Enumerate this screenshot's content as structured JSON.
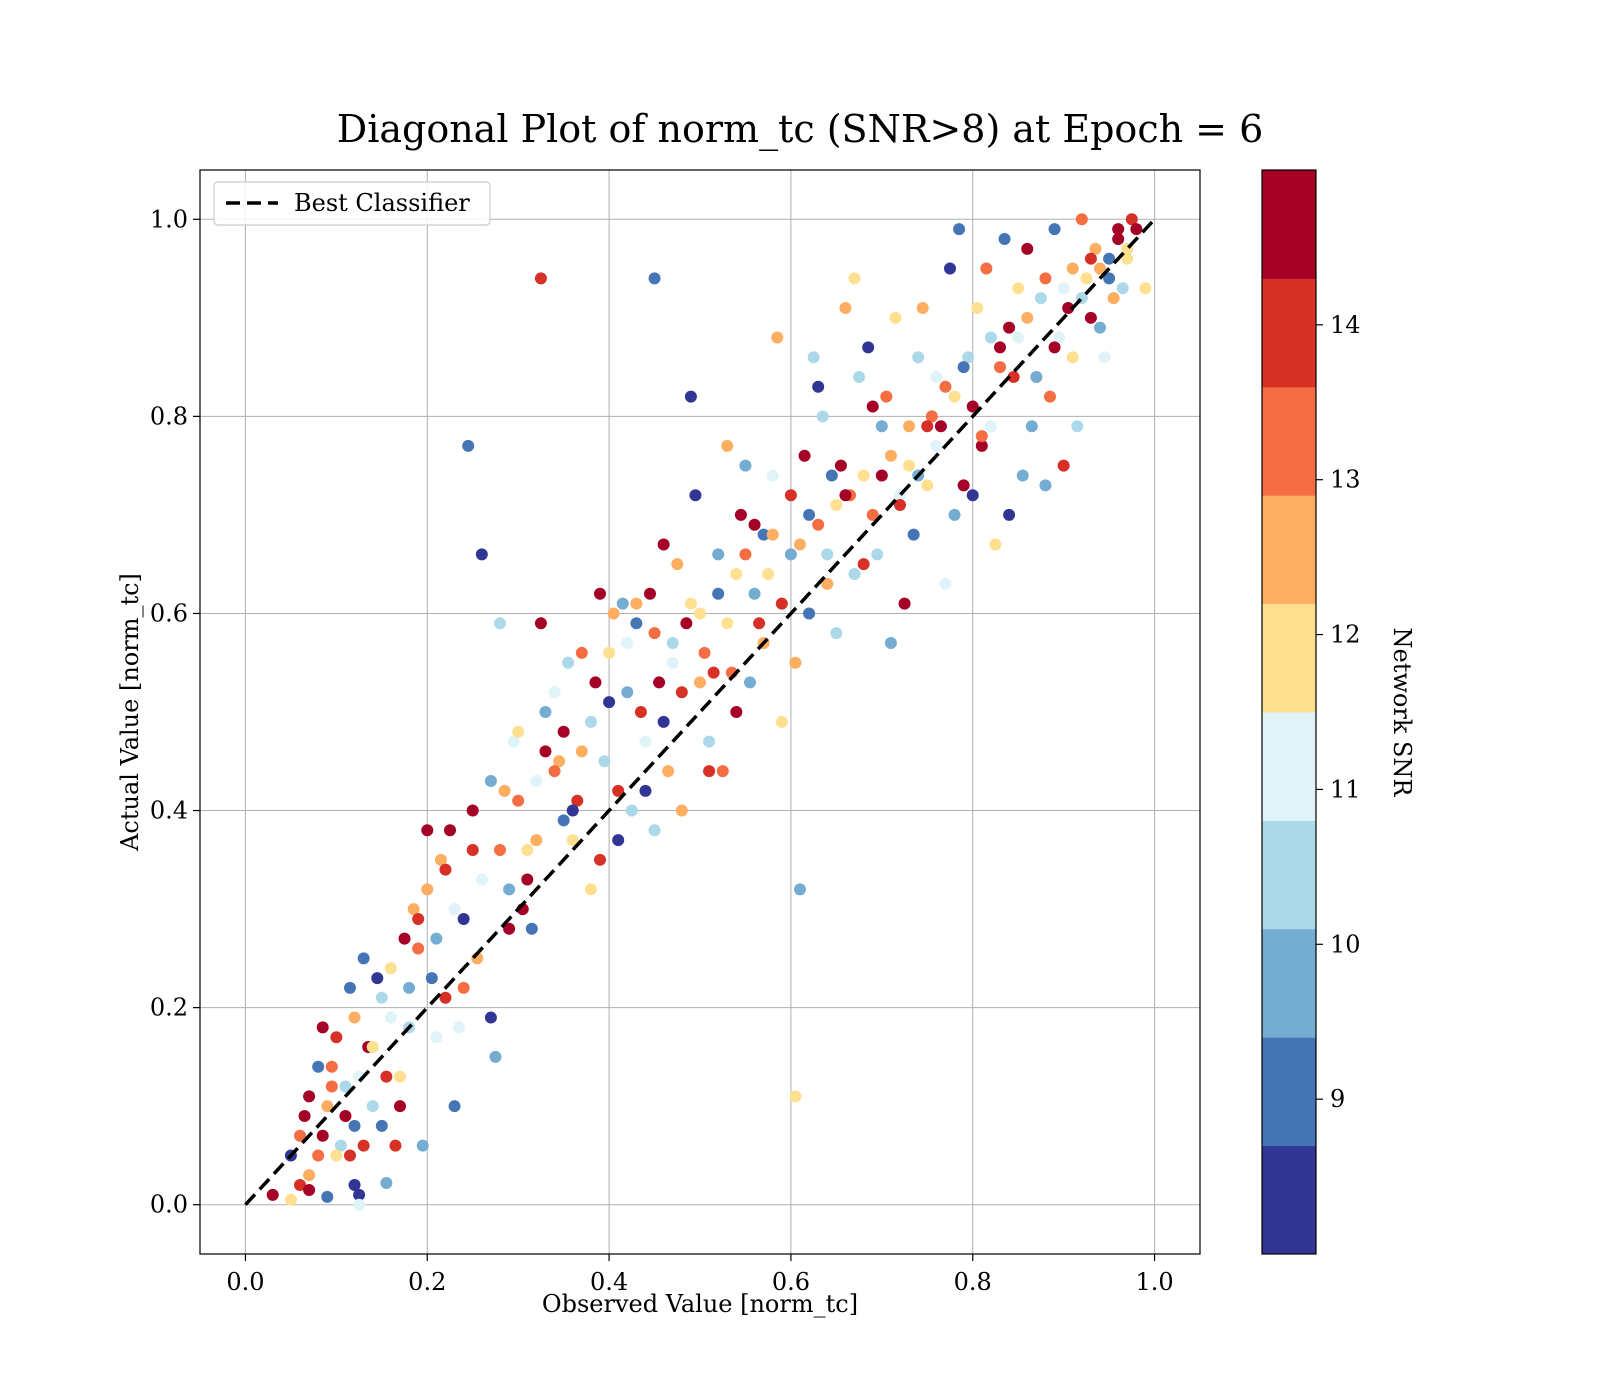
{
  "chart_data": {
    "type": "scatter",
    "title": "Diagonal Plot of norm_tc (SNR>8) at Epoch = 6",
    "xlabel": "Observed Value [norm_tc]",
    "ylabel": "Actual Value [norm_tc]",
    "xlim": [
      -0.05,
      1.05
    ],
    "ylim": [
      -0.05,
      1.05
    ],
    "xticks": [
      "0.0",
      "0.2",
      "0.4",
      "0.6",
      "0.8",
      "1.0"
    ],
    "yticks": [
      "0.0",
      "0.2",
      "0.4",
      "0.6",
      "0.8",
      "1.0"
    ],
    "grid": true,
    "legend": {
      "location": "top-left",
      "entries": [
        "Best Classifier"
      ]
    },
    "reference_line": {
      "name": "Best Classifier",
      "x": [
        0,
        1
      ],
      "y": [
        0,
        1
      ],
      "style": "dashed",
      "color": "#000000"
    },
    "colorbar": {
      "label": "Network SNR",
      "range": [
        8,
        15
      ],
      "ticks": [
        "9",
        "10",
        "11",
        "12",
        "13",
        "14"
      ],
      "colors": [
        "#313695",
        "#4575b4",
        "#74add1",
        "#abd9e9",
        "#e0f3f8",
        "#fee090",
        "#fdae61",
        "#f46d43",
        "#d73027",
        "#a50026"
      ]
    },
    "points": [
      [
        0.03,
        0.01,
        14.6
      ],
      [
        0.05,
        0.005,
        12.2
      ],
      [
        0.06,
        0.02,
        14.1
      ],
      [
        0.07,
        0.015,
        14.5
      ],
      [
        0.09,
        0.008,
        9.2
      ],
      [
        0.12,
        0.02,
        8.4
      ],
      [
        0.125,
        0.01,
        8.5
      ],
      [
        0.125,
        0.0,
        11.2
      ],
      [
        0.155,
        0.022,
        9.8
      ],
      [
        0.05,
        0.05,
        8.6
      ],
      [
        0.06,
        0.07,
        13.1
      ],
      [
        0.065,
        0.09,
        14.4
      ],
      [
        0.07,
        0.11,
        14.6
      ],
      [
        0.08,
        0.05,
        13.5
      ],
      [
        0.085,
        0.18,
        14.7
      ],
      [
        0.09,
        0.1,
        12.8
      ],
      [
        0.095,
        0.12,
        13.3
      ],
      [
        0.1,
        0.17,
        14.2
      ],
      [
        0.105,
        0.06,
        10.6
      ],
      [
        0.11,
        0.09,
        14.3
      ],
      [
        0.115,
        0.22,
        9.1
      ],
      [
        0.12,
        0.19,
        12.4
      ],
      [
        0.125,
        0.13,
        11.0
      ],
      [
        0.13,
        0.25,
        9.3
      ],
      [
        0.135,
        0.16,
        14.6
      ],
      [
        0.14,
        0.1,
        10.5
      ],
      [
        0.145,
        0.23,
        8.7
      ],
      [
        0.15,
        0.21,
        10.2
      ],
      [
        0.155,
        0.13,
        13.9
      ],
      [
        0.16,
        0.24,
        12.1
      ],
      [
        0.165,
        0.06,
        14.2
      ],
      [
        0.17,
        0.13,
        11.6
      ],
      [
        0.175,
        0.27,
        14.5
      ],
      [
        0.18,
        0.22,
        9.8
      ],
      [
        0.185,
        0.3,
        12.6
      ],
      [
        0.19,
        0.29,
        13.9
      ],
      [
        0.195,
        0.06,
        9.5
      ],
      [
        0.2,
        0.38,
        14.4
      ],
      [
        0.205,
        0.23,
        8.9
      ],
      [
        0.21,
        0.17,
        11.3
      ],
      [
        0.215,
        0.35,
        12.7
      ],
      [
        0.22,
        0.21,
        13.8
      ],
      [
        0.225,
        0.38,
        14.6
      ],
      [
        0.23,
        0.1,
        9.2
      ],
      [
        0.235,
        0.18,
        10.8
      ],
      [
        0.24,
        0.29,
        8.6
      ],
      [
        0.245,
        0.77,
        9.3
      ],
      [
        0.25,
        0.36,
        13.9
      ],
      [
        0.255,
        0.25,
        12.3
      ],
      [
        0.26,
        0.66,
        8.3
      ],
      [
        0.27,
        0.19,
        8.4
      ],
      [
        0.275,
        0.15,
        9.7
      ],
      [
        0.28,
        0.59,
        10.7
      ],
      [
        0.285,
        0.42,
        12.4
      ],
      [
        0.29,
        0.28,
        14.5
      ],
      [
        0.295,
        0.47,
        11.4
      ],
      [
        0.3,
        0.41,
        13.2
      ],
      [
        0.305,
        0.3,
        14.7
      ],
      [
        0.31,
        0.36,
        12.1
      ],
      [
        0.315,
        0.28,
        9.1
      ],
      [
        0.32,
        0.43,
        10.9
      ],
      [
        0.325,
        0.94,
        14.2
      ],
      [
        0.325,
        0.59,
        14.7
      ],
      [
        0.33,
        0.46,
        14.6
      ],
      [
        0.34,
        0.52,
        11.2
      ],
      [
        0.345,
        0.45,
        12.6
      ],
      [
        0.35,
        0.39,
        9.0
      ],
      [
        0.355,
        0.55,
        10.3
      ],
      [
        0.36,
        0.37,
        11.9
      ],
      [
        0.365,
        0.41,
        14.2
      ],
      [
        0.37,
        0.56,
        13.5
      ],
      [
        0.38,
        0.32,
        11.7
      ],
      [
        0.385,
        0.53,
        14.3
      ],
      [
        0.39,
        0.62,
        14.8
      ],
      [
        0.395,
        0.45,
        10.6
      ],
      [
        0.4,
        0.51,
        8.5
      ],
      [
        0.405,
        0.6,
        12.6
      ],
      [
        0.41,
        0.37,
        8.6
      ],
      [
        0.415,
        0.61,
        9.6
      ],
      [
        0.42,
        0.57,
        11.1
      ],
      [
        0.425,
        0.4,
        10.4
      ],
      [
        0.43,
        0.59,
        9.2
      ],
      [
        0.435,
        0.5,
        14.0
      ],
      [
        0.44,
        0.42,
        8.3
      ],
      [
        0.445,
        0.62,
        14.3
      ],
      [
        0.45,
        0.94,
        9.3
      ],
      [
        0.45,
        0.38,
        10.2
      ],
      [
        0.455,
        0.53,
        14.6
      ],
      [
        0.46,
        0.67,
        14.7
      ],
      [
        0.465,
        0.44,
        12.8
      ],
      [
        0.47,
        0.55,
        11.3
      ],
      [
        0.475,
        0.65,
        12.5
      ],
      [
        0.48,
        0.4,
        12.7
      ],
      [
        0.485,
        0.59,
        14.7
      ],
      [
        0.49,
        0.82,
        8.4
      ],
      [
        0.495,
        0.72,
        8.6
      ],
      [
        0.5,
        0.6,
        12.1
      ],
      [
        0.505,
        0.56,
        12.9
      ],
      [
        0.51,
        0.47,
        10.7
      ],
      [
        0.515,
        0.54,
        14.2
      ],
      [
        0.52,
        0.66,
        9.4
      ],
      [
        0.525,
        0.44,
        13.1
      ],
      [
        0.53,
        0.77,
        12.6
      ],
      [
        0.535,
        0.54,
        13.4
      ],
      [
        0.54,
        0.64,
        12.2
      ],
      [
        0.545,
        0.7,
        14.5
      ],
      [
        0.55,
        0.75,
        9.8
      ],
      [
        0.555,
        0.53,
        9.6
      ],
      [
        0.56,
        0.69,
        14.6
      ],
      [
        0.565,
        0.59,
        13.8
      ],
      [
        0.57,
        0.68,
        8.9
      ],
      [
        0.575,
        0.64,
        11.8
      ],
      [
        0.58,
        0.68,
        12.7
      ],
      [
        0.585,
        0.88,
        12.3
      ],
      [
        0.59,
        0.49,
        11.7
      ],
      [
        0.6,
        0.72,
        14.2
      ],
      [
        0.605,
        0.11,
        12.1
      ],
      [
        0.605,
        0.55,
        12.5
      ],
      [
        0.61,
        0.32,
        9.5
      ],
      [
        0.615,
        0.76,
        14.5
      ],
      [
        0.62,
        0.7,
        9.0
      ],
      [
        0.625,
        0.86,
        10.4
      ],
      [
        0.63,
        0.83,
        8.6
      ],
      [
        0.635,
        0.8,
        10.3
      ],
      [
        0.64,
        0.63,
        12.7
      ],
      [
        0.645,
        0.74,
        8.8
      ],
      [
        0.65,
        0.58,
        10.7
      ],
      [
        0.655,
        0.75,
        14.6
      ],
      [
        0.66,
        0.91,
        12.6
      ],
      [
        0.665,
        0.72,
        13.1
      ],
      [
        0.67,
        0.94,
        12.1
      ],
      [
        0.675,
        0.84,
        10.2
      ],
      [
        0.68,
        0.65,
        13.9
      ],
      [
        0.685,
        0.87,
        8.5
      ],
      [
        0.69,
        0.81,
        14.4
      ],
      [
        0.695,
        0.66,
        10.6
      ],
      [
        0.7,
        0.74,
        14.7
      ],
      [
        0.705,
        0.82,
        13.5
      ],
      [
        0.71,
        0.57,
        9.6
      ],
      [
        0.715,
        0.9,
        12.1
      ],
      [
        0.72,
        0.72,
        11.2
      ],
      [
        0.725,
        0.61,
        14.6
      ],
      [
        0.73,
        0.79,
        12.4
      ],
      [
        0.735,
        0.68,
        9.3
      ],
      [
        0.74,
        0.86,
        10.3
      ],
      [
        0.745,
        0.91,
        12.5
      ],
      [
        0.75,
        0.73,
        12.0
      ],
      [
        0.755,
        0.8,
        13.5
      ],
      [
        0.76,
        0.84,
        11.0
      ],
      [
        0.765,
        0.79,
        14.4
      ],
      [
        0.77,
        0.63,
        11.3
      ],
      [
        0.775,
        0.95,
        8.4
      ],
      [
        0.78,
        0.7,
        9.4
      ],
      [
        0.785,
        0.99,
        9.1
      ],
      [
        0.79,
        0.73,
        14.7
      ],
      [
        0.795,
        0.86,
        10.6
      ],
      [
        0.8,
        0.72,
        8.5
      ],
      [
        0.805,
        0.91,
        12.2
      ],
      [
        0.81,
        0.77,
        14.3
      ],
      [
        0.815,
        0.95,
        13.2
      ],
      [
        0.82,
        0.79,
        11.2
      ],
      [
        0.825,
        0.67,
        12.2
      ],
      [
        0.83,
        0.87,
        14.6
      ],
      [
        0.835,
        0.98,
        9.3
      ],
      [
        0.84,
        0.7,
        8.6
      ],
      [
        0.845,
        0.84,
        13.8
      ],
      [
        0.85,
        0.93,
        11.8
      ],
      [
        0.855,
        0.74,
        10.1
      ],
      [
        0.86,
        0.97,
        14.7
      ],
      [
        0.865,
        0.79,
        9.5
      ],
      [
        0.87,
        0.84,
        12.3
      ],
      [
        0.875,
        0.92,
        10.4
      ],
      [
        0.88,
        0.73,
        9.8
      ],
      [
        0.885,
        0.82,
        13.6
      ],
      [
        0.89,
        0.99,
        9.1
      ],
      [
        0.895,
        0.88,
        10.8
      ],
      [
        0.9,
        0.75,
        14.1
      ],
      [
        0.905,
        0.91,
        14.8
      ],
      [
        0.91,
        0.86,
        12.1
      ],
      [
        0.915,
        0.79,
        10.5
      ],
      [
        0.92,
        1.0,
        13.4
      ],
      [
        0.925,
        0.94,
        11.5
      ],
      [
        0.93,
        0.9,
        14.5
      ],
      [
        0.935,
        0.97,
        12.8
      ],
      [
        0.94,
        0.89,
        9.6
      ],
      [
        0.945,
        0.86,
        11.3
      ],
      [
        0.95,
        0.96,
        8.9
      ],
      [
        0.955,
        0.92,
        12.6
      ],
      [
        0.96,
        0.98,
        14.7
      ],
      [
        0.965,
        0.93,
        10.3
      ],
      [
        0.97,
        0.97,
        12.2
      ],
      [
        0.975,
        1.0,
        13.7
      ],
      [
        0.98,
        0.99,
        14.8
      ],
      [
        0.99,
        0.93,
        12.0
      ],
      [
        0.07,
        0.03,
        12.6
      ],
      [
        0.08,
        0.14,
        9.3
      ],
      [
        0.085,
        0.07,
        14.6
      ],
      [
        0.095,
        0.14,
        13.3
      ],
      [
        0.1,
        0.05,
        11.8
      ],
      [
        0.11,
        0.12,
        10.3
      ],
      [
        0.115,
        0.05,
        13.7
      ],
      [
        0.12,
        0.08,
        9.0
      ],
      [
        0.13,
        0.06,
        14.1
      ],
      [
        0.14,
        0.16,
        12.2
      ],
      [
        0.15,
        0.08,
        8.8
      ],
      [
        0.16,
        0.19,
        11.4
      ],
      [
        0.17,
        0.1,
        14.8
      ],
      [
        0.18,
        0.18,
        10.5
      ],
      [
        0.19,
        0.26,
        13.2
      ],
      [
        0.2,
        0.32,
        12.3
      ],
      [
        0.21,
        0.27,
        9.6
      ],
      [
        0.22,
        0.34,
        14.1
      ],
      [
        0.23,
        0.3,
        10.8
      ],
      [
        0.24,
        0.22,
        12.9
      ],
      [
        0.25,
        0.4,
        14.3
      ],
      [
        0.26,
        0.33,
        11.2
      ],
      [
        0.27,
        0.43,
        9.4
      ],
      [
        0.28,
        0.36,
        13.5
      ],
      [
        0.29,
        0.32,
        10.1
      ],
      [
        0.3,
        0.48,
        11.6
      ],
      [
        0.31,
        0.33,
        14.4
      ],
      [
        0.32,
        0.37,
        12.5
      ],
      [
        0.33,
        0.5,
        9.8
      ],
      [
        0.34,
        0.44,
        13.0
      ],
      [
        0.35,
        0.48,
        14.5
      ],
      [
        0.36,
        0.4,
        8.4
      ],
      [
        0.37,
        0.46,
        12.7
      ],
      [
        0.38,
        0.49,
        10.6
      ],
      [
        0.39,
        0.35,
        13.9
      ],
      [
        0.4,
        0.56,
        11.9
      ],
      [
        0.41,
        0.42,
        14.2
      ],
      [
        0.42,
        0.52,
        9.9
      ],
      [
        0.43,
        0.61,
        12.5
      ],
      [
        0.44,
        0.47,
        11.4
      ],
      [
        0.45,
        0.58,
        13.3
      ],
      [
        0.46,
        0.49,
        8.7
      ],
      [
        0.47,
        0.57,
        10.2
      ],
      [
        0.48,
        0.52,
        14.0
      ],
      [
        0.49,
        0.61,
        11.5
      ],
      [
        0.5,
        0.53,
        12.4
      ],
      [
        0.51,
        0.44,
        13.7
      ],
      [
        0.52,
        0.62,
        9.1
      ],
      [
        0.53,
        0.59,
        11.9
      ],
      [
        0.54,
        0.5,
        14.4
      ],
      [
        0.55,
        0.66,
        13.2
      ],
      [
        0.56,
        0.62,
        10.0
      ],
      [
        0.57,
        0.57,
        12.3
      ],
      [
        0.58,
        0.74,
        11.0
      ],
      [
        0.59,
        0.61,
        14.1
      ],
      [
        0.6,
        0.66,
        9.7
      ],
      [
        0.61,
        0.67,
        12.8
      ],
      [
        0.62,
        0.6,
        8.8
      ],
      [
        0.63,
        0.69,
        13.6
      ],
      [
        0.64,
        0.66,
        10.7
      ],
      [
        0.65,
        0.71,
        12.1
      ],
      [
        0.66,
        0.72,
        14.3
      ],
      [
        0.67,
        0.64,
        10.3
      ],
      [
        0.68,
        0.74,
        11.8
      ],
      [
        0.69,
        0.7,
        13.1
      ],
      [
        0.7,
        0.79,
        10.1
      ],
      [
        0.71,
        0.76,
        12.6
      ],
      [
        0.72,
        0.71,
        14.1
      ],
      [
        0.73,
        0.75,
        11.5
      ],
      [
        0.74,
        0.74,
        9.5
      ],
      [
        0.75,
        0.79,
        13.9
      ],
      [
        0.76,
        0.77,
        10.9
      ],
      [
        0.77,
        0.83,
        13.3
      ],
      [
        0.78,
        0.82,
        12.2
      ],
      [
        0.79,
        0.85,
        9.2
      ],
      [
        0.8,
        0.81,
        14.6
      ],
      [
        0.81,
        0.78,
        12.9
      ],
      [
        0.82,
        0.88,
        10.2
      ],
      [
        0.83,
        0.85,
        13.4
      ],
      [
        0.84,
        0.89,
        14.7
      ],
      [
        0.85,
        0.88,
        11.1
      ],
      [
        0.86,
        0.9,
        12.4
      ],
      [
        0.87,
        0.84,
        9.4
      ],
      [
        0.88,
        0.94,
        13.1
      ],
      [
        0.89,
        0.87,
        14.4
      ],
      [
        0.9,
        0.93,
        11.4
      ],
      [
        0.91,
        0.95,
        12.7
      ],
      [
        0.92,
        0.92,
        10.2
      ],
      [
        0.93,
        0.96,
        14.2
      ],
      [
        0.94,
        0.95,
        12.4
      ],
      [
        0.95,
        0.94,
        9.1
      ],
      [
        0.96,
        0.99,
        14.9
      ],
      [
        0.97,
        0.96,
        11.9
      ]
    ]
  }
}
